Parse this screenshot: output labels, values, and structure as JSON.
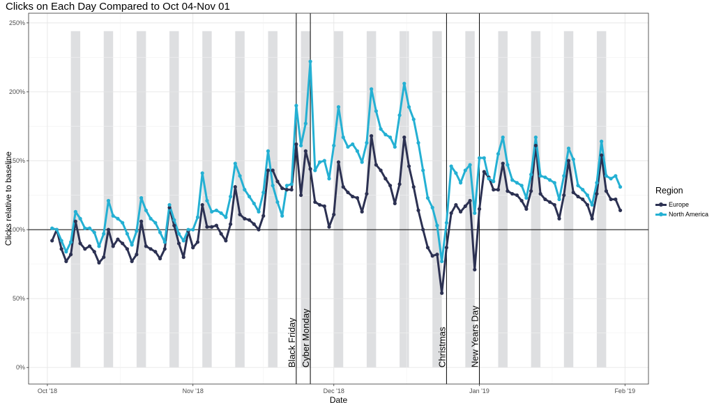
{
  "chart_data": {
    "type": "line",
    "title": "Clicks on Each Day Compared to Oct 04-Nov 01",
    "xlabel": "Date",
    "ylabel": "Clicks relative to baseline",
    "x_start": "2018-10-02",
    "x_ticks": [
      {
        "date": "2018-10-01",
        "label": "Oct '18"
      },
      {
        "date": "2018-11-01",
        "label": "Nov '18"
      },
      {
        "date": "2018-12-01",
        "label": "Dec '18"
      },
      {
        "date": "2019-01-01",
        "label": "Jan '19"
      },
      {
        "date": "2019-02-01",
        "label": "Feb '19"
      }
    ],
    "y_ticks": [
      {
        "value": 0,
        "label": "0%"
      },
      {
        "value": 0.5,
        "label": "50%"
      },
      {
        "value": 1.0,
        "label": "100%"
      },
      {
        "value": 1.5,
        "label": "150%"
      },
      {
        "value": 2.0,
        "label": "200%"
      },
      {
        "value": 2.5,
        "label": "250%"
      }
    ],
    "ylim": [
      -0.12,
      2.57
    ],
    "xlim": [
      "2018-09-27",
      "2019-02-06"
    ],
    "baseline": 1.0,
    "weekend_bands": [
      {
        "start": "2018-10-06",
        "end": "2018-10-07"
      },
      {
        "start": "2018-10-13",
        "end": "2018-10-14"
      },
      {
        "start": "2018-10-20",
        "end": "2018-10-21"
      },
      {
        "start": "2018-10-27",
        "end": "2018-10-28"
      },
      {
        "start": "2018-11-03",
        "end": "2018-11-04"
      },
      {
        "start": "2018-11-10",
        "end": "2018-11-11"
      },
      {
        "start": "2018-11-17",
        "end": "2018-11-18"
      },
      {
        "start": "2018-11-24",
        "end": "2018-11-25"
      },
      {
        "start": "2018-12-01",
        "end": "2018-12-02"
      },
      {
        "start": "2018-12-08",
        "end": "2018-12-09"
      },
      {
        "start": "2018-12-15",
        "end": "2018-12-16"
      },
      {
        "start": "2018-12-22",
        "end": "2018-12-23"
      },
      {
        "start": "2018-12-29",
        "end": "2018-12-30"
      },
      {
        "start": "2019-01-05",
        "end": "2019-01-06"
      },
      {
        "start": "2019-01-12",
        "end": "2019-01-13"
      },
      {
        "start": "2019-01-19",
        "end": "2019-01-20"
      },
      {
        "start": "2019-01-26",
        "end": "2019-01-27"
      }
    ],
    "band_top": 2.44,
    "events": [
      {
        "date": "2018-11-23",
        "label": "Black Friday"
      },
      {
        "date": "2018-11-26",
        "label": "Cyber Monday"
      },
      {
        "date": "2018-12-25",
        "label": "Christmas"
      },
      {
        "date": "2019-01-01",
        "label": "New Years Day"
      }
    ],
    "legend": {
      "title": "Region",
      "position": "right"
    },
    "grid": true,
    "series": [
      {
        "name": "Europe",
        "color": "#2c3152",
        "values": [
          0.92,
          1.0,
          0.86,
          0.77,
          0.82,
          1.06,
          0.9,
          0.86,
          0.88,
          0.84,
          0.76,
          0.8,
          1.0,
          0.88,
          0.93,
          0.9,
          0.86,
          0.77,
          0.82,
          1.06,
          0.88,
          0.86,
          0.84,
          0.79,
          0.86,
          1.16,
          1.03,
          0.9,
          0.8,
          0.99,
          0.87,
          0.91,
          1.18,
          1.02,
          1.02,
          1.03,
          0.97,
          0.92,
          1.04,
          1.31,
          1.11,
          1.08,
          1.07,
          1.04,
          1.0,
          1.1,
          1.43,
          1.43,
          1.35,
          1.3,
          1.29,
          1.29,
          1.62,
          1.25,
          1.57,
          1.44,
          1.2,
          1.18,
          1.17,
          1.02,
          1.11,
          1.49,
          1.31,
          1.27,
          1.24,
          1.23,
          1.13,
          1.26,
          1.68,
          1.47,
          1.43,
          1.37,
          1.32,
          1.19,
          1.33,
          1.67,
          1.46,
          1.31,
          1.14,
          1.0,
          0.87,
          0.81,
          0.82,
          0.54,
          0.87,
          1.12,
          1.18,
          1.13,
          1.17,
          1.21,
          0.71,
          1.15,
          1.42,
          1.38,
          1.29,
          1.29,
          1.48,
          1.28,
          1.26,
          1.25,
          1.21,
          1.15,
          1.28,
          1.61,
          1.26,
          1.22,
          1.2,
          1.18,
          1.08,
          1.25,
          1.5,
          1.27,
          1.24,
          1.22,
          1.18,
          1.08,
          1.26,
          1.54,
          1.28,
          1.22,
          1.22,
          1.14
        ]
      },
      {
        "name": "North America",
        "color": "#24b0d3",
        "values": [
          1.01,
          1.0,
          0.92,
          0.84,
          0.91,
          1.13,
          1.08,
          1.01,
          1.01,
          0.98,
          0.88,
          0.97,
          1.21,
          1.1,
          1.08,
          1.05,
          0.97,
          0.89,
          0.99,
          1.23,
          1.14,
          1.08,
          1.05,
          0.98,
          0.91,
          1.18,
          1.07,
          0.97,
          0.92,
          1.0,
          1.0,
          1.09,
          1.41,
          1.21,
          1.13,
          1.14,
          1.12,
          1.09,
          1.24,
          1.48,
          1.39,
          1.29,
          1.24,
          1.19,
          1.13,
          1.27,
          1.57,
          1.32,
          1.2,
          1.1,
          1.32,
          1.33,
          1.9,
          1.61,
          1.77,
          2.22,
          1.43,
          1.49,
          1.5,
          1.37,
          1.61,
          1.89,
          1.67,
          1.6,
          1.62,
          1.57,
          1.49,
          1.63,
          2.02,
          1.86,
          1.73,
          1.69,
          1.67,
          1.6,
          1.83,
          2.06,
          1.89,
          1.8,
          1.63,
          1.43,
          1.23,
          1.16,
          1.03,
          0.77,
          1.05,
          1.46,
          1.41,
          1.34,
          1.43,
          1.47,
          1.12,
          1.52,
          1.52,
          1.37,
          1.35,
          1.55,
          1.67,
          1.47,
          1.36,
          1.34,
          1.32,
          1.23,
          1.4,
          1.67,
          1.39,
          1.38,
          1.36,
          1.34,
          1.22,
          1.39,
          1.59,
          1.51,
          1.32,
          1.29,
          1.25,
          1.18,
          1.34,
          1.64,
          1.39,
          1.37,
          1.39,
          1.31
        ]
      }
    ]
  }
}
